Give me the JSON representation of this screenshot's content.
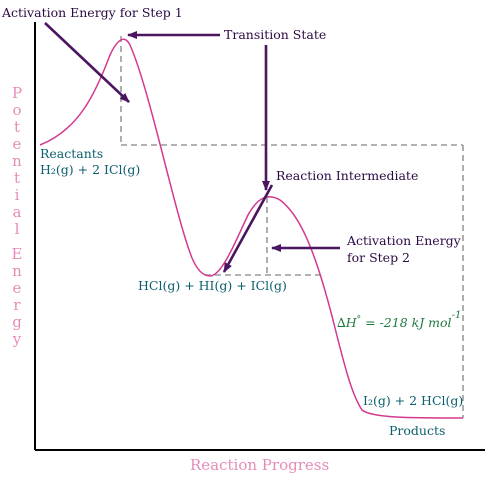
{
  "axis": {
    "y_title_letters": [
      "P",
      "o",
      "t",
      "e",
      "n",
      "t",
      "i",
      "a",
      "l",
      " ",
      "E",
      "n",
      "e",
      "r",
      "g",
      "y"
    ],
    "x_title": "Reaction Progress"
  },
  "annotations": {
    "activation_step1": "Activation Energy for Step 1",
    "transition_state": "Transition State",
    "reaction_intermediate": "Reaction Intermediate",
    "activation_step2_line1": "Activation Energy",
    "activation_step2_line2": "for Step 2"
  },
  "species": {
    "reactants_title": "Reactants",
    "reactants": "H₂(g) + 2 ICl(g)",
    "intermediate": "HCl(g) + HI(g) + ICl(g)",
    "products": "I₂(g) + 2 HCl(g)",
    "products_title": "Products"
  },
  "enthalpy": {
    "symbol": "∆",
    "H": "H",
    "degree": "°",
    "text": " = -218 kJ mol",
    "exponent": "-1"
  },
  "colors": {
    "curve": "#d4388f",
    "arrows": "#4b1560",
    "dashes": "#9a9a9a",
    "axis_title": "#e78cb9",
    "species_text": "#0b5f6e",
    "enthalpy_text": "#1e7a3f"
  }
}
